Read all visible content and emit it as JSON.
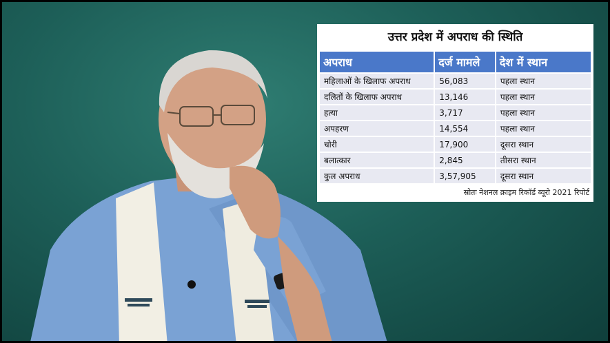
{
  "infographic": {
    "title": "उत्तर प्रदेश में अपराध की स्थिति",
    "headers": [
      "अपराध",
      "दर्ज मामले",
      "देश में स्थान"
    ],
    "rows": [
      [
        "महिलाओं के खिलाफ अपराध",
        "56,083",
        "पहला स्थान"
      ],
      [
        "दलितों के खिलाफ अपराध",
        "13,146",
        "पहला स्थान"
      ],
      [
        "हत्या",
        "3,717",
        "पहला स्थान"
      ],
      [
        "अपहरण",
        "14,554",
        "पहला स्थान"
      ],
      [
        "चोरी",
        "17,900",
        "दूसरा स्थान"
      ],
      [
        "बलात्कार",
        "2,845",
        "तीसरा स्थान"
      ],
      [
        "कुल अपराध",
        "3,57,905",
        "दूसरा स्थान"
      ]
    ],
    "source": "स्रोतः नेशनल क्राइम रिकॉर्ड ब्यूरो 2021 रिपोर्ट"
  },
  "colors": {
    "background": "#1d5f58",
    "header": "#4a78c9",
    "row": "#e8e9f2",
    "shirt": "#7fa6d6",
    "scarf": "#f3f0e6"
  }
}
